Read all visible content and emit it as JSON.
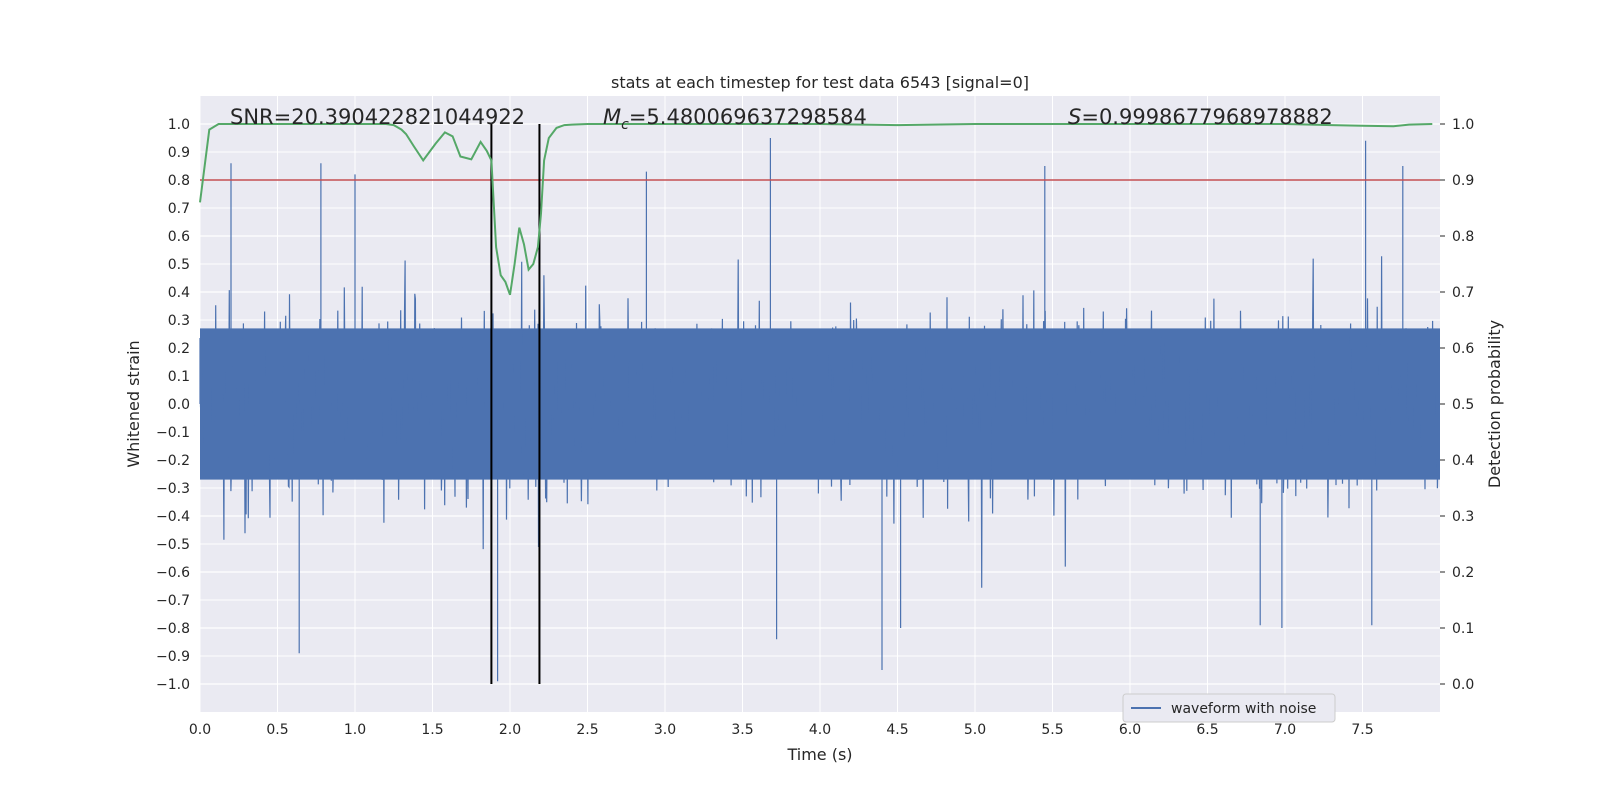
{
  "chart_data": {
    "type": "line",
    "title": "stats at each timestep for test data 6543 [signal=0]",
    "xlabel": "Time (s)",
    "ylabel": "Whitened strain",
    "y2label": "Detection probability",
    "xlim": [
      0.0,
      8.0
    ],
    "ylim": [
      -1.1,
      1.1
    ],
    "y2lim": [
      -0.05,
      1.05
    ],
    "xticks": [
      "0.0",
      "0.5",
      "1.0",
      "1.5",
      "2.0",
      "2.5",
      "3.0",
      "3.5",
      "4.0",
      "4.5",
      "5.0",
      "5.5",
      "6.0",
      "6.5",
      "7.0",
      "7.5"
    ],
    "yticks": [
      "1.0",
      "0.9",
      "0.8",
      "0.7",
      "0.6",
      "0.5",
      "0.4",
      "0.3",
      "0.2",
      "0.1",
      "0.0",
      "−0.1",
      "−0.2",
      "−0.3",
      "−0.4",
      "−0.5",
      "−0.6",
      "−0.7",
      "−0.8",
      "−0.9",
      "−1.0"
    ],
    "y2ticks": [
      "1.0",
      "0.9",
      "0.8",
      "0.7",
      "0.6",
      "0.5",
      "0.4",
      "0.3",
      "0.2",
      "0.1",
      "0.0"
    ],
    "annotations": {
      "snr": "SNR=20.390422821044922",
      "mc_prefix": "M",
      "mc_sub": "c",
      "mc_value": "=5.480069637298584",
      "s_prefix": "S",
      "s_value": "=0.9998677968978882"
    },
    "threshold": 0.9,
    "window": [
      1.88,
      2.19
    ],
    "legend": "waveform with noise",
    "legend_loc": "lower right",
    "colors": {
      "waveform": "#4c72b0",
      "probability": "#55a868",
      "threshold": "#c44e52",
      "window": "#000000",
      "background": "#eaeaf2",
      "grid": "#ffffff"
    },
    "series": [
      {
        "name": "detection probability",
        "axis": "right",
        "x": [
          0.0,
          0.06,
          0.12,
          0.2,
          0.3,
          0.5,
          0.7,
          0.9,
          1.1,
          1.2,
          1.25,
          1.3,
          1.33,
          1.38,
          1.44,
          1.52,
          1.58,
          1.63,
          1.68,
          1.75,
          1.81,
          1.85,
          1.88,
          1.91,
          1.94,
          1.97,
          2.0,
          2.03,
          2.06,
          2.09,
          2.12,
          2.15,
          2.18,
          2.2,
          2.22,
          2.25,
          2.3,
          2.35,
          2.4,
          2.5,
          2.6,
          2.8,
          3.0,
          3.2,
          3.5,
          4.0,
          4.5,
          5.0,
          5.5,
          6.0,
          6.5,
          7.0,
          7.3,
          7.5,
          7.7,
          7.8,
          7.95
        ],
        "values": [
          0.86,
          0.99,
          1.0,
          1.0,
          1.0,
          1.0,
          1.0,
          1.0,
          1.0,
          1.0,
          0.998,
          0.99,
          0.982,
          0.96,
          0.935,
          0.965,
          0.985,
          0.978,
          0.942,
          0.937,
          0.968,
          0.952,
          0.935,
          0.78,
          0.73,
          0.718,
          0.695,
          0.75,
          0.815,
          0.785,
          0.74,
          0.75,
          0.78,
          0.84,
          0.935,
          0.975,
          0.993,
          0.998,
          0.999,
          1.0,
          1.0,
          1.0,
          1.0,
          1.0,
          1.0,
          1.0,
          0.998,
          1.0,
          1.0,
          1.0,
          1.0,
          1.0,
          0.998,
          0.997,
          0.996,
          0.999,
          1.0
        ]
      },
      {
        "name": "waveform with noise",
        "axis": "left",
        "sampling_rate_hz": 2048,
        "typical_amplitude": 0.3,
        "notable_peaks": [
          {
            "x": 0.2,
            "value": 0.86
          },
          {
            "x": 0.78,
            "value": 0.86
          },
          {
            "x": 1.0,
            "value": 0.82
          },
          {
            "x": 2.88,
            "value": 0.83
          },
          {
            "x": 3.68,
            "value": 0.95
          },
          {
            "x": 5.45,
            "value": 0.85
          },
          {
            "x": 7.52,
            "value": 0.94
          },
          {
            "x": 7.76,
            "value": 0.85
          },
          {
            "x": 0.64,
            "value": -0.89
          },
          {
            "x": 1.92,
            "value": -0.99
          },
          {
            "x": 3.72,
            "value": -0.84
          },
          {
            "x": 4.4,
            "value": -0.95
          },
          {
            "x": 4.52,
            "value": -0.8
          },
          {
            "x": 6.84,
            "value": -0.79
          },
          {
            "x": 6.98,
            "value": -0.8
          },
          {
            "x": 7.56,
            "value": -0.79
          }
        ]
      }
    ]
  }
}
